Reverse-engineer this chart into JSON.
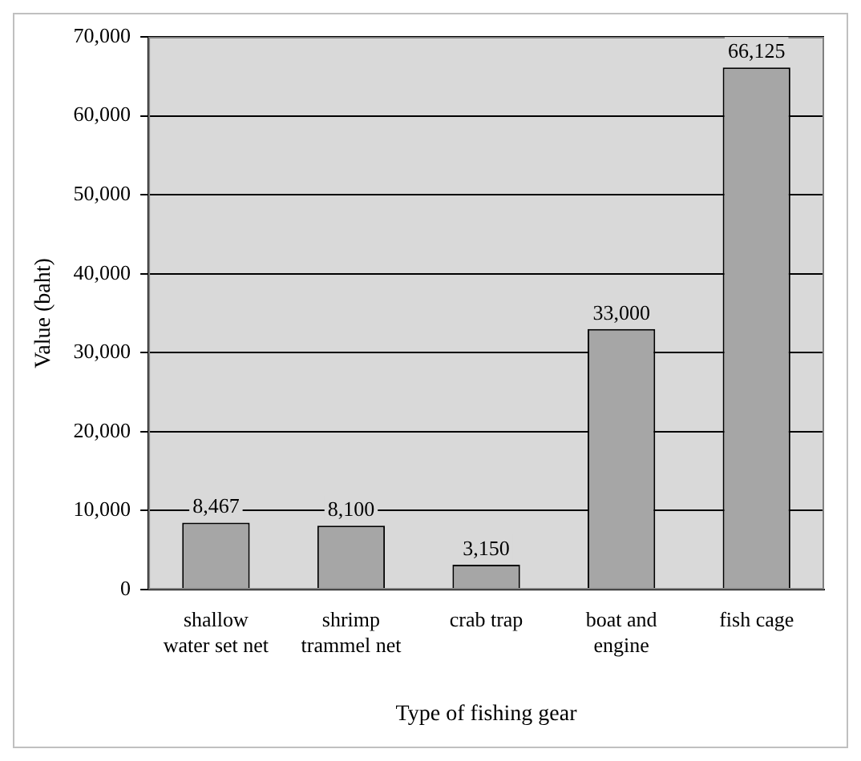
{
  "chart_data": {
    "type": "bar",
    "xlabel": "Type of fishing gear",
    "ylabel": "Value (baht)",
    "categories": [
      "shallow water set net",
      "shrimp trammel net",
      "crab trap",
      "boat and engine",
      "fish cage"
    ],
    "values": [
      8467,
      8100,
      3150,
      33000,
      66125
    ],
    "color": "#a6a6a6",
    "ylim": [
      0,
      70000
    ],
    "yticks": [
      {
        "value": 0,
        "label": "0"
      },
      {
        "value": 10000,
        "label": "10,000"
      },
      {
        "value": 20000,
        "label": "20,000"
      },
      {
        "value": 30000,
        "label": "30,000"
      },
      {
        "value": 40000,
        "label": "40,000"
      },
      {
        "value": 50000,
        "label": "50,000"
      },
      {
        "value": 60000,
        "label": "60,000"
      },
      {
        "value": 70000,
        "label": "70,000"
      }
    ],
    "value_labels": [
      "8,467",
      "8,100",
      "3,150",
      "33,000",
      "66,125"
    ],
    "grid": "y",
    "legend": false
  }
}
